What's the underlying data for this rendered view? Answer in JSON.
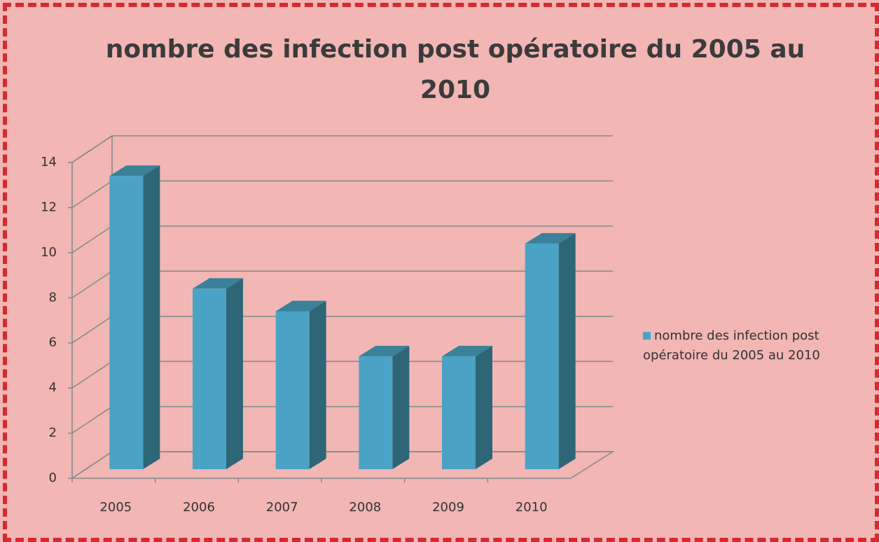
{
  "chart_data": {
    "type": "bar3d",
    "title": "nombre des infection post opératoire du 2005 au 2010",
    "categories": [
      "2005",
      "2006",
      "2007",
      "2008",
      "2009",
      "2010"
    ],
    "series": [
      {
        "name": "nombre des infection post opératoire du 2005 au 2010",
        "color": "#4aa3c4",
        "values": [
          13,
          8,
          7,
          5,
          5,
          10
        ]
      }
    ],
    "ylim": [
      0,
      14
    ],
    "yticks": [
      0,
      2,
      4,
      6,
      8,
      10,
      12,
      14
    ],
    "grid": true,
    "legend": "right"
  }
}
